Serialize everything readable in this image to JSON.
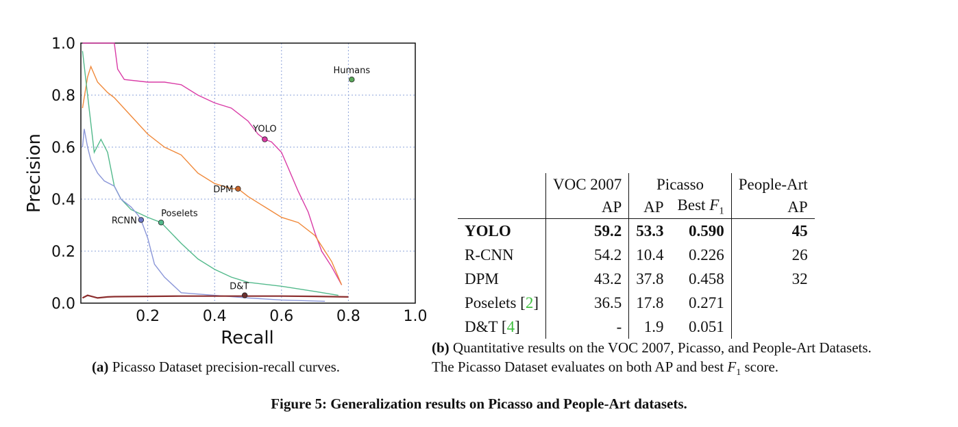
{
  "chart_data": {
    "type": "line",
    "xlabel": "Recall",
    "ylabel": "Precision",
    "xlim": [
      0,
      1.0
    ],
    "ylim": [
      0,
      1.0
    ],
    "x_ticks": [
      "0.2",
      "0.4",
      "0.6",
      "0.8",
      "1.0"
    ],
    "y_ticks": [
      "0.0",
      "0.2",
      "0.4",
      "0.6",
      "0.8",
      "1.0"
    ],
    "grid": true,
    "series": [
      {
        "name": "YOLO",
        "color": "#d93ba6",
        "x": [
          0.005,
          0.02,
          0.05,
          0.1,
          0.11,
          0.13,
          0.2,
          0.25,
          0.3,
          0.35,
          0.4,
          0.45,
          0.5,
          0.53,
          0.55,
          0.57,
          0.6,
          0.62,
          0.65,
          0.68,
          0.7,
          0.72,
          0.75,
          0.78
        ],
        "y": [
          1.0,
          1.0,
          1.0,
          1.0,
          0.9,
          0.86,
          0.85,
          0.85,
          0.84,
          0.8,
          0.77,
          0.75,
          0.7,
          0.65,
          0.63,
          0.62,
          0.58,
          0.52,
          0.43,
          0.35,
          0.27,
          0.2,
          0.14,
          0.07
        ]
      },
      {
        "name": "DPM",
        "color": "#f0893a",
        "x": [
          0.005,
          0.02,
          0.03,
          0.05,
          0.08,
          0.1,
          0.15,
          0.2,
          0.25,
          0.3,
          0.35,
          0.4,
          0.45,
          0.47,
          0.5,
          0.55,
          0.6,
          0.65,
          0.7,
          0.75,
          0.78
        ],
        "y": [
          0.75,
          0.87,
          0.91,
          0.85,
          0.81,
          0.79,
          0.72,
          0.65,
          0.6,
          0.57,
          0.5,
          0.46,
          0.44,
          0.44,
          0.41,
          0.37,
          0.33,
          0.31,
          0.26,
          0.16,
          0.07
        ]
      },
      {
        "name": "Poselets",
        "color": "#52b98b",
        "x": [
          0.005,
          0.02,
          0.04,
          0.06,
          0.08,
          0.1,
          0.12,
          0.15,
          0.2,
          0.24,
          0.3,
          0.35,
          0.4,
          0.45,
          0.5,
          0.6,
          0.7,
          0.77
        ],
        "y": [
          0.97,
          0.8,
          0.58,
          0.63,
          0.58,
          0.45,
          0.4,
          0.36,
          0.33,
          0.31,
          0.23,
          0.17,
          0.13,
          0.1,
          0.08,
          0.065,
          0.045,
          0.03
        ]
      },
      {
        "name": "RCNN",
        "color": "#8a96d8",
        "x": [
          0.005,
          0.01,
          0.02,
          0.03,
          0.05,
          0.07,
          0.1,
          0.12,
          0.15,
          0.17,
          0.18,
          0.2,
          0.22,
          0.25,
          0.3,
          0.4,
          0.5,
          0.6,
          0.73
        ],
        "y": [
          0.6,
          0.67,
          0.6,
          0.55,
          0.5,
          0.47,
          0.45,
          0.4,
          0.37,
          0.34,
          0.32,
          0.25,
          0.15,
          0.1,
          0.04,
          0.03,
          0.02,
          0.012,
          0.007
        ]
      },
      {
        "name": "D&T",
        "color": "#8b2d2d",
        "x": [
          0.005,
          0.02,
          0.05,
          0.08,
          0.1,
          0.2,
          0.3,
          0.4,
          0.5,
          0.6,
          0.7,
          0.8
        ],
        "y": [
          0.02,
          0.03,
          0.02,
          0.024,
          0.025,
          0.026,
          0.027,
          0.027,
          0.027,
          0.027,
          0.026,
          0.024
        ]
      }
    ],
    "points": [
      {
        "name": "Humans",
        "x": 0.81,
        "y": 0.86,
        "color": "#5aa65a"
      },
      {
        "name": "YOLO",
        "x": 0.55,
        "y": 0.63,
        "color": "#d93ba6"
      },
      {
        "name": "DPM",
        "x": 0.47,
        "y": 0.44,
        "color": "#c7642a"
      },
      {
        "name": "Poselets",
        "x": 0.24,
        "y": 0.31,
        "color": "#52b98b"
      },
      {
        "name": "RCNN",
        "x": 0.18,
        "y": 0.32,
        "color": "#6c78c8"
      },
      {
        "name": "D&T",
        "x": 0.49,
        "y": 0.03,
        "color": "#6b3030"
      }
    ]
  },
  "caption_a": {
    "tag": "(a)",
    "text": " Picasso Dataset precision-recall curves."
  },
  "table": {
    "header1": {
      "voc": "VOC 2007",
      "picasso": "Picasso",
      "people": "People-Art"
    },
    "header2": {
      "voc": "AP",
      "ap": "AP",
      "best_f1_prefix": "Best ",
      "best_f1_var": "F",
      "best_f1_sub": "1",
      "people": "AP"
    },
    "rows": [
      {
        "name": "YOLO",
        "cite": "",
        "voc": "59.2",
        "ap": "53.3",
        "f1": "0.590",
        "people": "45"
      },
      {
        "name": "R-CNN",
        "cite": "",
        "voc": "54.2",
        "ap": "10.4",
        "f1": "0.226",
        "people": "26"
      },
      {
        "name": "DPM",
        "cite": "",
        "voc": "43.2",
        "ap": "37.8",
        "f1": "0.458",
        "people": "32"
      },
      {
        "name": "Poselets ",
        "cite": "2",
        "voc": "36.5",
        "ap": "17.8",
        "f1": "0.271",
        "people": ""
      },
      {
        "name": "D&T ",
        "cite": "4",
        "voc": "-",
        "ap": "1.9",
        "f1": "0.051",
        "people": ""
      }
    ]
  },
  "caption_b": {
    "tag": "(b)",
    "line1": " Quantitative results on the VOC 2007, Picasso, and People-Art Datasets.",
    "line2_pre": "The Picasso Dataset evaluates on both AP and best ",
    "line2_var": "F",
    "line2_sub": "1",
    "line2_post": " score."
  },
  "figure_caption": "Figure 5: Generalization results on Picasso and People-Art datasets."
}
